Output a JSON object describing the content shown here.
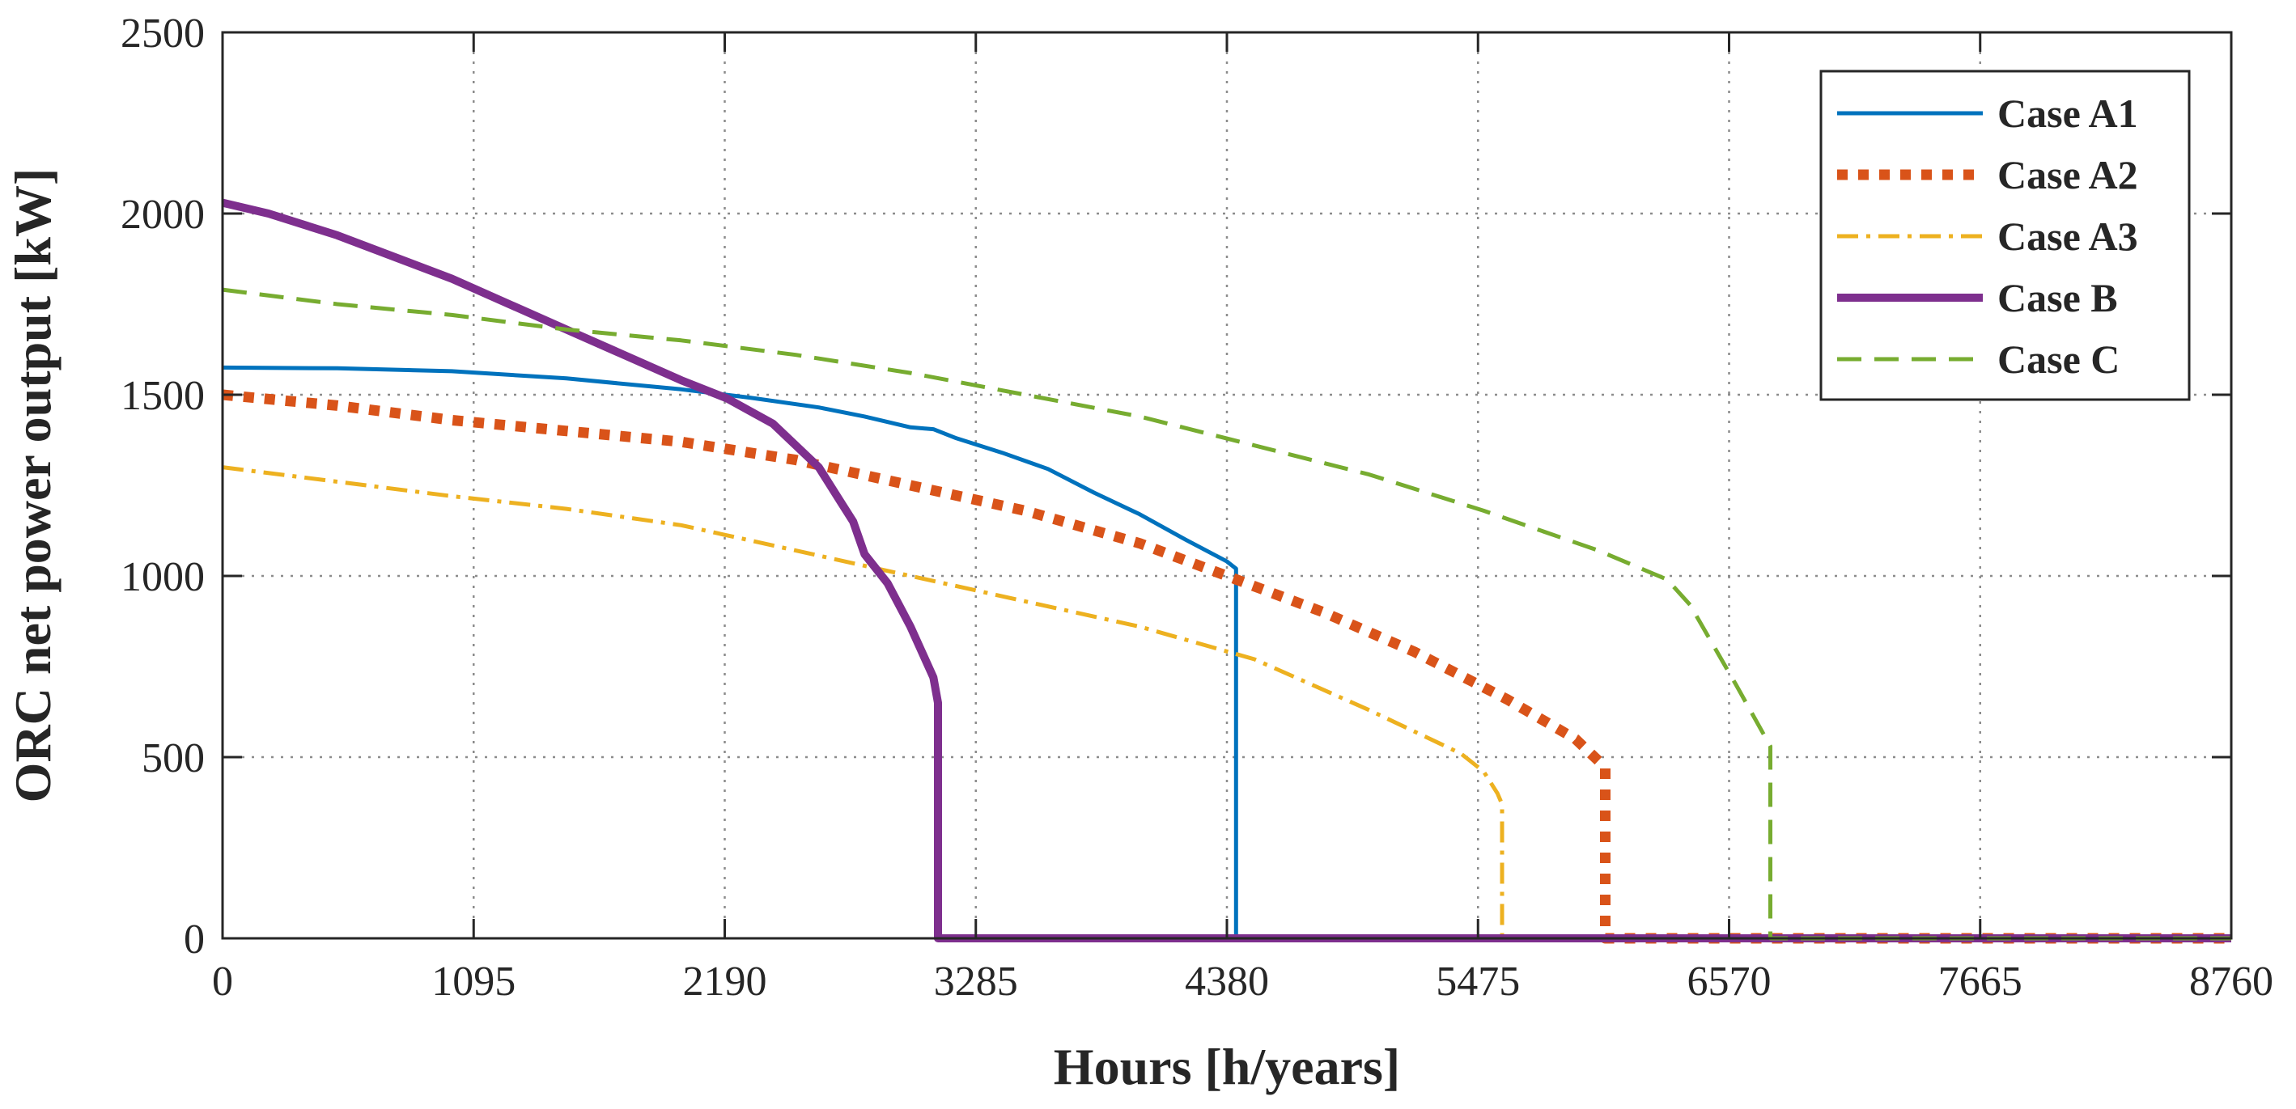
{
  "chart_data": {
    "type": "line",
    "xlabel": "Hours [h/years]",
    "ylabel": "ORC net power output [kW]",
    "xlim": [
      0,
      8760
    ],
    "ylim": [
      0,
      2500
    ],
    "xticks": [
      0,
      1095,
      2190,
      3285,
      4380,
      5475,
      6570,
      7665,
      8760
    ],
    "yticks": [
      0,
      500,
      1000,
      1500,
      2000,
      2500
    ],
    "xtick_labels": [
      "0",
      "1095",
      "2190",
      "3285",
      "4380",
      "5475",
      "6570",
      "7665",
      "8760"
    ],
    "ytick_labels": [
      "0",
      "500",
      "1000",
      "1500",
      "2000",
      "2500"
    ],
    "grid": true,
    "legend_position": "top-right",
    "series": [
      {
        "name": "Case A1",
        "color": "#0072BD",
        "line_style": "solid",
        "x": [
          0,
          500,
          1000,
          1500,
          2000,
          2300,
          2600,
          2800,
          3000,
          3100,
          3200,
          3400,
          3600,
          3800,
          4000,
          4200,
          4380,
          4420,
          4420,
          8760
        ],
        "y": [
          1575,
          1573,
          1565,
          1545,
          1515,
          1492,
          1465,
          1440,
          1410,
          1405,
          1380,
          1340,
          1295,
          1230,
          1170,
          1100,
          1040,
          1020,
          0,
          0
        ]
      },
      {
        "name": "Case A2",
        "color": "#D95319",
        "line_style": "dotted",
        "x": [
          0,
          500,
          1000,
          1500,
          2000,
          2500,
          3000,
          3500,
          4000,
          4380,
          4800,
          5200,
          5600,
          5900,
          6000,
          6030,
          6030,
          8760
        ],
        "y": [
          1500,
          1470,
          1430,
          1400,
          1370,
          1320,
          1250,
          1180,
          1090,
          1000,
          900,
          790,
          660,
          550,
          490,
          470,
          0,
          0
        ]
      },
      {
        "name": "Case A3",
        "color": "#EDB120",
        "line_style": "dashdot",
        "x": [
          0,
          500,
          1000,
          1500,
          2000,
          2500,
          3000,
          3500,
          4000,
          4500,
          5000,
          5400,
          5500,
          5560,
          5580,
          5580,
          8760
        ],
        "y": [
          1300,
          1260,
          1220,
          1185,
          1140,
          1070,
          1000,
          930,
          860,
          770,
          630,
          510,
          460,
          400,
          370,
          0,
          0
        ]
      },
      {
        "name": "Case B",
        "color": "#7E2F8E",
        "line_style": "solid-thick",
        "x": [
          0,
          200,
          500,
          1000,
          1500,
          2000,
          2200,
          2400,
          2600,
          2700,
          2750,
          2800,
          2900,
          3000,
          3100,
          3120,
          3120,
          8760
        ],
        "y": [
          2030,
          2000,
          1940,
          1820,
          1680,
          1540,
          1490,
          1420,
          1300,
          1200,
          1150,
          1060,
          980,
          860,
          720,
          650,
          0,
          0
        ]
      },
      {
        "name": "Case C",
        "color": "#77AC30",
        "line_style": "dashed",
        "x": [
          0,
          500,
          1000,
          1500,
          2000,
          2500,
          3000,
          3500,
          4000,
          4500,
          5000,
          5500,
          6000,
          6300,
          6400,
          6600,
          6750,
          6750,
          8760
        ],
        "y": [
          1790,
          1750,
          1720,
          1680,
          1650,
          1610,
          1560,
          1500,
          1440,
          1360,
          1280,
          1180,
          1070,
          990,
          920,
          700,
          530,
          0,
          0
        ]
      }
    ]
  }
}
